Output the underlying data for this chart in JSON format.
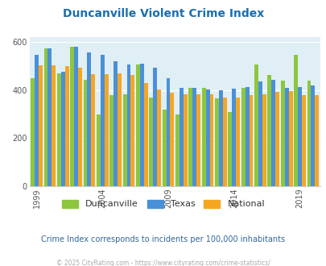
{
  "title": "Duncanville Violent Crime Index",
  "title_color": "#1a6faf",
  "years": [
    1999,
    2000,
    2001,
    2002,
    2003,
    2004,
    2005,
    2006,
    2007,
    2008,
    2009,
    2010,
    2011,
    2012,
    2013,
    2014,
    2015,
    2016,
    2017,
    2018,
    2019,
    2020
  ],
  "duncanville": [
    448,
    573,
    470,
    580,
    443,
    300,
    378,
    383,
    505,
    368,
    318,
    298,
    408,
    408,
    365,
    308,
    410,
    505,
    464,
    440,
    548,
    438
  ],
  "texas": [
    548,
    575,
    475,
    582,
    557,
    548,
    520,
    508,
    510,
    494,
    450,
    410,
    408,
    402,
    400,
    405,
    413,
    435,
    443,
    408,
    413,
    418
  ],
  "national": [
    504,
    504,
    500,
    493,
    468,
    465,
    470,
    462,
    430,
    404,
    388,
    383,
    382,
    382,
    368,
    370,
    378,
    383,
    394,
    395,
    379,
    379
  ],
  "ylim": [
    0,
    620
  ],
  "yticks": [
    0,
    200,
    400,
    600
  ],
  "tick_years": [
    1999,
    2004,
    2009,
    2014,
    2019
  ],
  "duncanville_color": "#8dc63f",
  "texas_color": "#4a90d9",
  "national_color": "#f5a623",
  "bg_color": "#e0eff5",
  "subtitle": "Crime Index corresponds to incidents per 100,000 inhabitants",
  "footer": "© 2025 CityRating.com - https://www.cityrating.com/crime-statistics/",
  "footer_color": "#aaaaaa",
  "subtitle_color": "#336699",
  "title_fontsize": 10,
  "subtitle_fontsize": 7,
  "footer_fontsize": 5.5,
  "tick_fontsize": 7
}
